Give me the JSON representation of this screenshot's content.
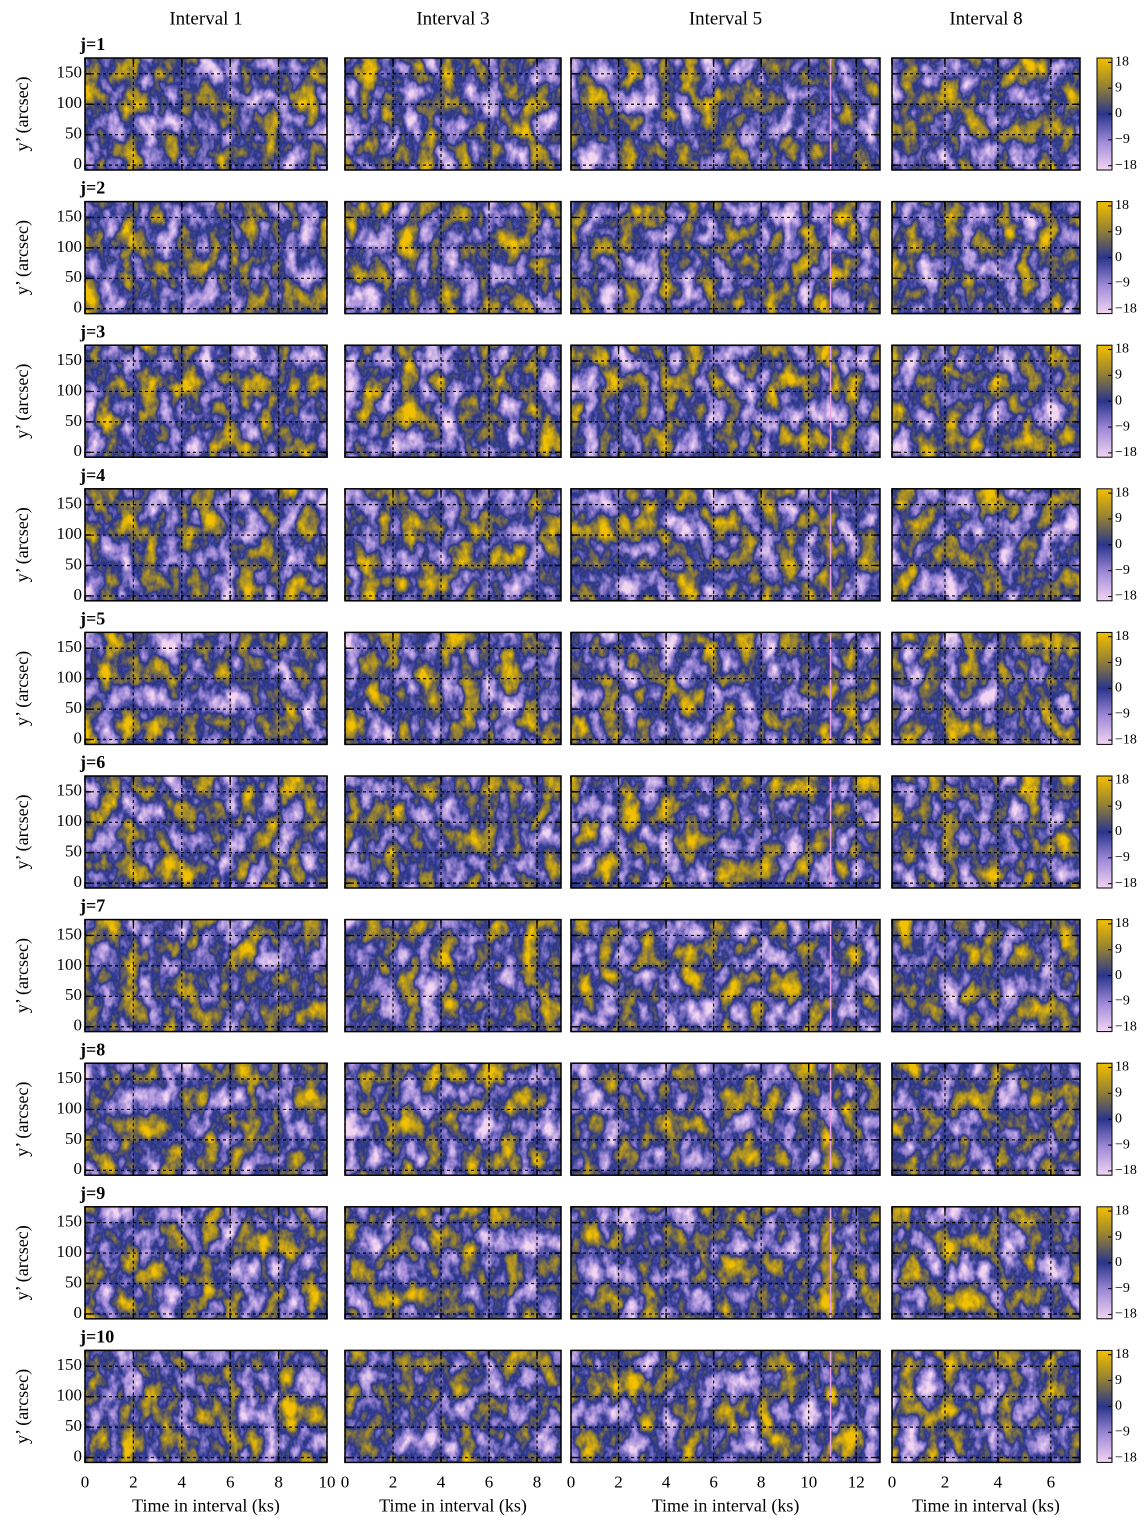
{
  "chart_data": {
    "type": "heatmap",
    "row_labels": [
      "j=1",
      "j=2",
      "j=3",
      "j=4",
      "j=5",
      "j=6",
      "j=7",
      "j=8",
      "j=9",
      "j=10"
    ],
    "ylabel": "y’ (arcsec)",
    "xlabel": "Time in interval (ks)",
    "ylim": [
      -8,
      176
    ],
    "yticks": [
      0,
      50,
      100,
      150
    ],
    "grid": true,
    "columns": [
      {
        "title": "Interval 1",
        "xlim": [
          0,
          10
        ],
        "xticks": [
          0,
          2,
          4,
          6,
          8,
          10
        ]
      },
      {
        "title": "Interval 3",
        "xlim": [
          0,
          9
        ],
        "xticks": [
          0,
          2,
          4,
          6,
          8
        ]
      },
      {
        "title": "Interval 5",
        "xlim": [
          0,
          13
        ],
        "xticks": [
          0,
          2,
          4,
          6,
          8,
          10,
          12
        ]
      },
      {
        "title": "Interval 8",
        "xlim": [
          0,
          7.1
        ],
        "xticks": [
          0,
          2,
          4,
          6
        ]
      }
    ],
    "colorbar": {
      "lim": [
        -19.5,
        19.5
      ],
      "ticks": [
        18,
        9,
        0,
        {
          "value": -9,
          "label": "−9"
        },
        {
          "value": -18,
          "label": "−18"
        }
      ],
      "colors": [
        "#f2d6f2",
        "#a08ad8",
        "#28348c",
        "#968232",
        "#f2c000"
      ]
    }
  }
}
